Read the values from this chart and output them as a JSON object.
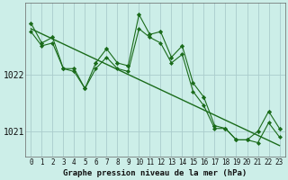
{
  "title": "Graphe pression niveau de la mer (hPa)",
  "bg_color": "#cceee8",
  "grid_color": "#aacccc",
  "line_color": "#1a6b1a",
  "marker_color": "#1a6b1a",
  "xlim": [
    -0.5,
    23.5
  ],
  "ylim": [
    1020.55,
    1023.25
  ],
  "x_ticks": [
    0,
    1,
    2,
    3,
    4,
    5,
    6,
    7,
    8,
    9,
    10,
    11,
    12,
    13,
    14,
    15,
    16,
    17,
    18,
    19,
    20,
    21,
    22,
    23
  ],
  "y_ticks": [
    1021.0,
    1022.0
  ],
  "series1": [
    1022.9,
    1022.55,
    1022.65,
    1022.1,
    1022.1,
    1021.75,
    1022.2,
    1022.45,
    1022.2,
    1022.15,
    1023.05,
    1022.7,
    1022.75,
    1022.3,
    1022.5,
    1021.85,
    1021.6,
    1021.1,
    1021.05,
    1020.85,
    1020.85,
    1021.0,
    1021.35,
    1021.05
  ],
  "series2": [
    1022.75,
    1022.5,
    1022.55,
    1022.1,
    1022.05,
    1021.75,
    1022.1,
    1022.3,
    1022.1,
    1022.05,
    1022.8,
    1022.65,
    1022.55,
    1022.2,
    1022.35,
    1021.7,
    1021.45,
    1021.05,
    1021.05,
    1020.85,
    1020.85,
    1020.8,
    1021.15,
    1020.9
  ],
  "trend_x": [
    0,
    23
  ],
  "trend_y": [
    1022.8,
    1020.75
  ],
  "title_fontsize": 6.5,
  "tick_fontsize": 5.5,
  "ytick_fontsize": 7
}
